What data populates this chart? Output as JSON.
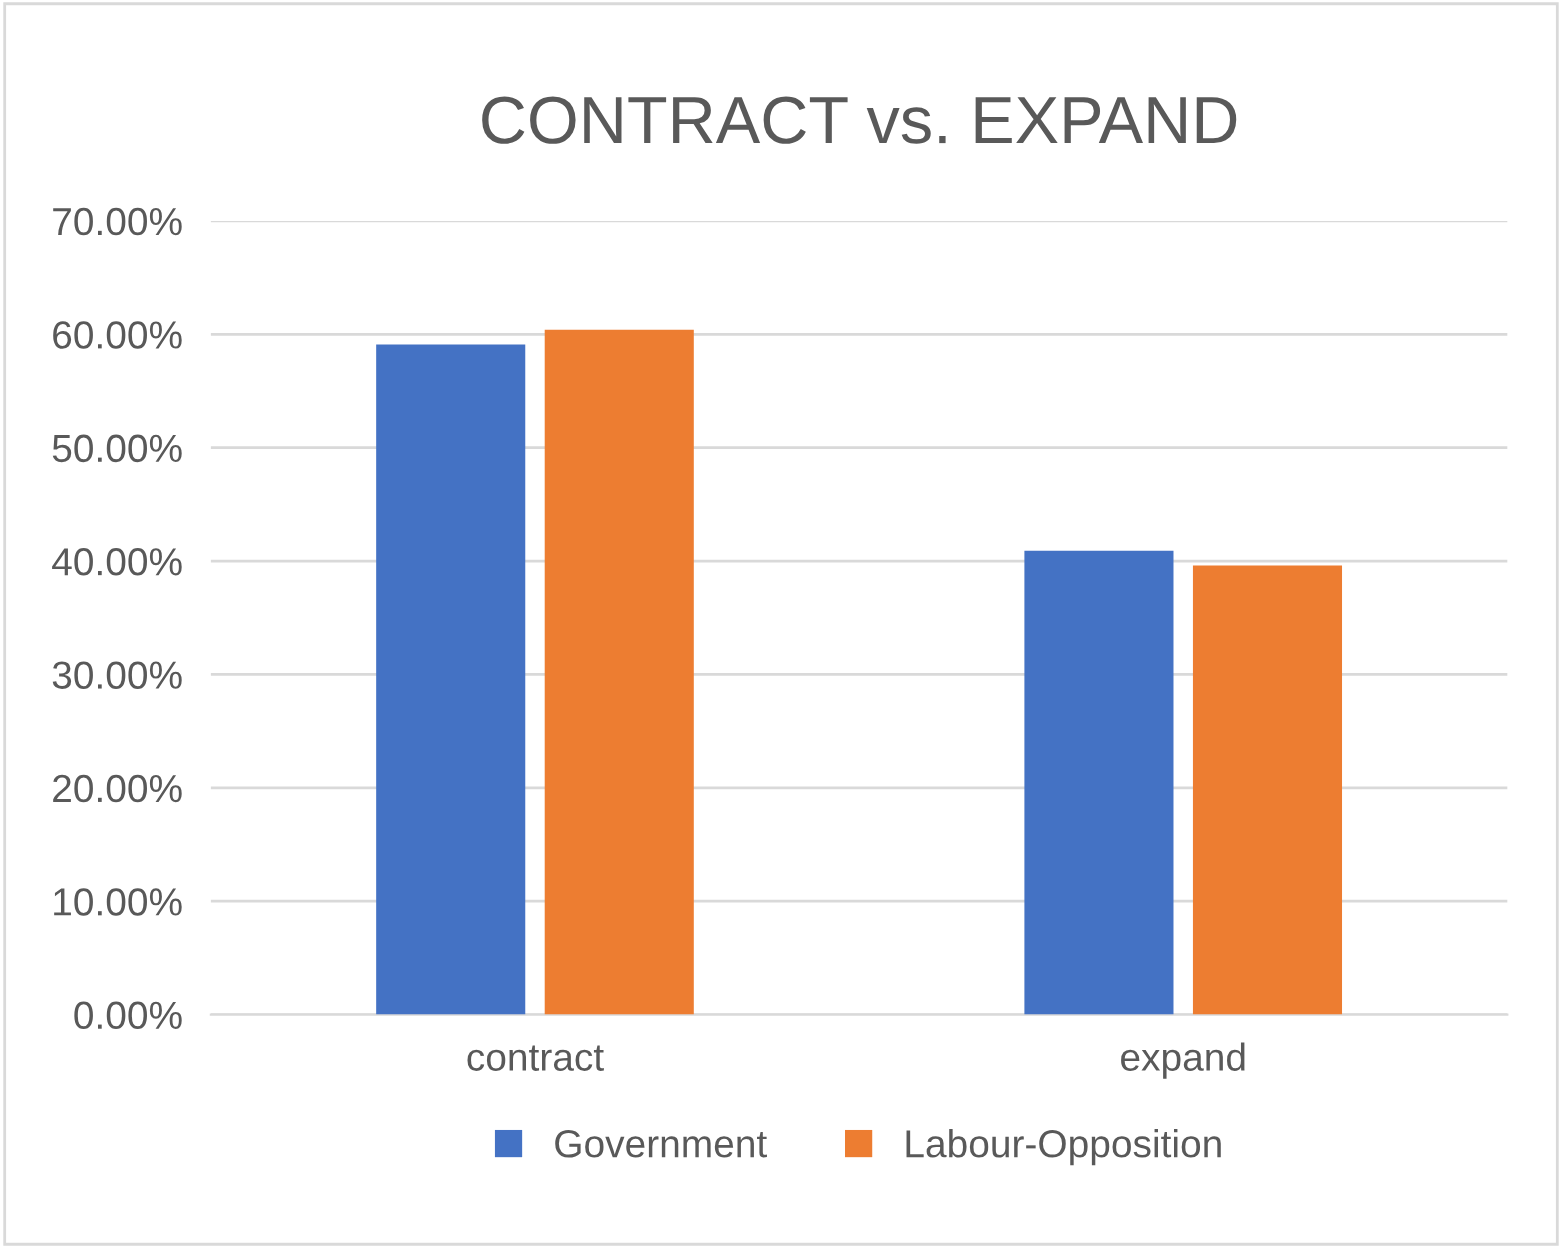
{
  "chart_data": {
    "type": "bar",
    "title": "CONTRACT vs. EXPAND",
    "categories": [
      "contract",
      "expand"
    ],
    "series": [
      {
        "name": "Government",
        "color": "#4472c4",
        "values": [
          59.1,
          40.9
        ]
      },
      {
        "name": "Labour-Opposition",
        "color": "#ed7d31",
        "values": [
          60.4,
          39.6
        ]
      }
    ],
    "ylim": [
      0,
      70
    ],
    "yticks": [
      {
        "value": 0,
        "label": "0.00%"
      },
      {
        "value": 10,
        "label": "10.00%"
      },
      {
        "value": 20,
        "label": "20.00%"
      },
      {
        "value": 30,
        "label": "30.00%"
      },
      {
        "value": 40,
        "label": "40.00%"
      },
      {
        "value": 50,
        "label": "50.00%"
      },
      {
        "value": 60,
        "label": "60.00%"
      },
      {
        "value": 70,
        "label": "70.00%"
      }
    ],
    "grid": "y",
    "legend": "bottom"
  }
}
